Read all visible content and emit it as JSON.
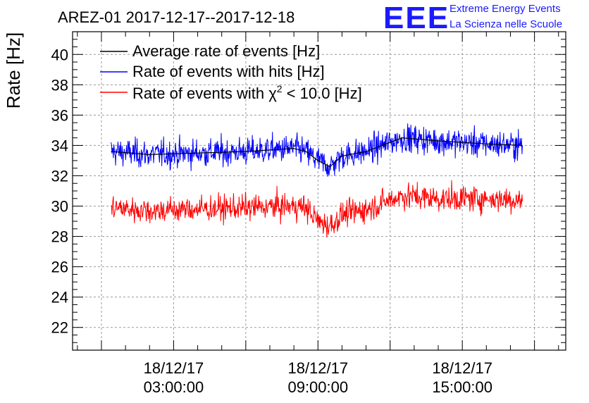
{
  "chart_data": {
    "type": "line",
    "title": "AREZ-01 2017-12-17--2017-12-18",
    "ylabel": "Rate [Hz]",
    "xlabel": "",
    "ylim": [
      20.5,
      41.5
    ],
    "y_ticks": [
      22,
      24,
      26,
      28,
      30,
      32,
      34,
      36,
      38,
      40
    ],
    "x_range_hours": [
      -1.2,
      19.3
    ],
    "x_ticks": [
      {
        "hour": 3,
        "date": "18/12/17",
        "time": "03:00:00"
      },
      {
        "hour": 9,
        "date": "18/12/17",
        "time": "09:00:00"
      },
      {
        "hour": 15,
        "date": "18/12/17",
        "time": "15:00:00"
      }
    ],
    "grid": true,
    "legend_position": "top-left",
    "series": [
      {
        "name": "Average rate of events [Hz]",
        "color": "#000000",
        "x_hours": [
          0.4,
          2,
          4,
          6,
          8,
          8.5,
          9,
          9.5,
          10,
          11,
          12,
          12.5,
          14,
          16,
          17.5
        ],
        "values": [
          33.6,
          33.4,
          33.5,
          33.6,
          33.8,
          33.6,
          33.0,
          32.6,
          33.3,
          33.6,
          34.2,
          34.5,
          34.3,
          34.1,
          34.0
        ]
      },
      {
        "name": "Rate of events with hits [Hz]",
        "color": "#0000ff",
        "x_hours": [
          0.4,
          2,
          4,
          6,
          8,
          8.5,
          9,
          9.5,
          10,
          11,
          12,
          12.5,
          14,
          16,
          17.5
        ],
        "values": [
          33.6,
          33.4,
          33.5,
          33.6,
          33.8,
          33.6,
          33.0,
          32.6,
          33.3,
          33.6,
          34.2,
          34.5,
          34.3,
          34.1,
          34.0
        ]
      },
      {
        "name": "Rate of events with χ2 < 10.0 [Hz]",
        "color": "#ff0000",
        "x_hours": [
          0.4,
          2,
          4,
          6,
          8,
          8.5,
          9,
          9.5,
          10,
          11,
          12,
          12.5,
          14,
          16,
          17.5
        ],
        "values": [
          29.9,
          29.7,
          29.8,
          29.9,
          30.0,
          29.9,
          29.0,
          28.7,
          29.4,
          29.8,
          30.4,
          30.7,
          30.5,
          30.5,
          30.4
        ]
      }
    ]
  },
  "legend_labels": {
    "avg": "Average rate of events [Hz]",
    "hits": "Rate of events with hits [Hz]",
    "chi_prefix": "Rate of events with χ",
    "chi_sup": "2",
    "chi_suffix": " < 10.0 [Hz]"
  },
  "brand": {
    "logo": "EEE",
    "line1": "Extreme Energy Events",
    "line2": "La Scienza nelle Scuole"
  }
}
